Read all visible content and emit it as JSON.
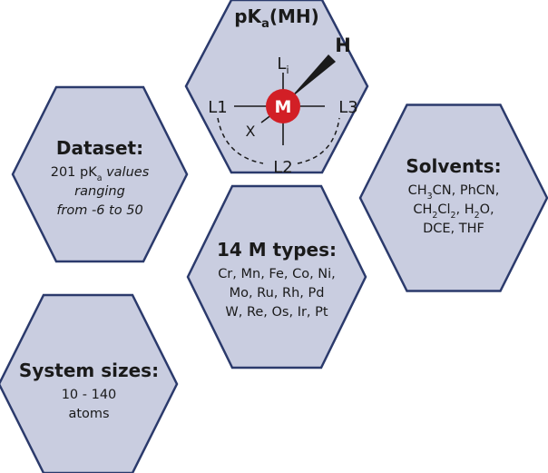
{
  "hexagons": [
    {
      "title": [
        "pK",
        {
          "sub": "a"
        },
        "(MH)"
      ],
      "lines": []
    },
    {
      "title": [
        "Dataset:"
      ],
      "lines": [
        [
          "201 pK",
          {
            "sub": "a"
          },
          {
            "italic": " values"
          }
        ],
        [
          {
            "italic": "ranging"
          }
        ],
        [
          {
            "italic": "from -6 to 50"
          }
        ]
      ]
    },
    {
      "title": [
        "Solvents:"
      ],
      "lines": [
        [
          "CH",
          {
            "sub": "3"
          },
          "CN, PhCN,"
        ],
        [
          "CH",
          {
            "sub": "2"
          },
          "Cl",
          {
            "sub": "2"
          },
          ", H",
          {
            "sub": "2"
          },
          "O,"
        ],
        [
          "DCE, THF"
        ]
      ]
    },
    {
      "title": [
        "14 M types:"
      ],
      "lines": [
        [
          "Cr, Mn, Fe, Co, Ni,"
        ],
        [
          "Mo, Ru, Rh, Pd"
        ],
        [
          "W, Re, Os, Ir, Pt"
        ]
      ]
    },
    {
      "title": [
        "System sizes:"
      ],
      "lines": [
        [
          "10 - 140"
        ],
        [
          "atoms"
        ]
      ]
    }
  ],
  "molecule": {
    "metal": "M",
    "hydride": "H",
    "top": [
      "L",
      {
        "sub": "i"
      }
    ],
    "left": "L1",
    "right": "L3",
    "bottom": "L2",
    "back": "X"
  }
}
